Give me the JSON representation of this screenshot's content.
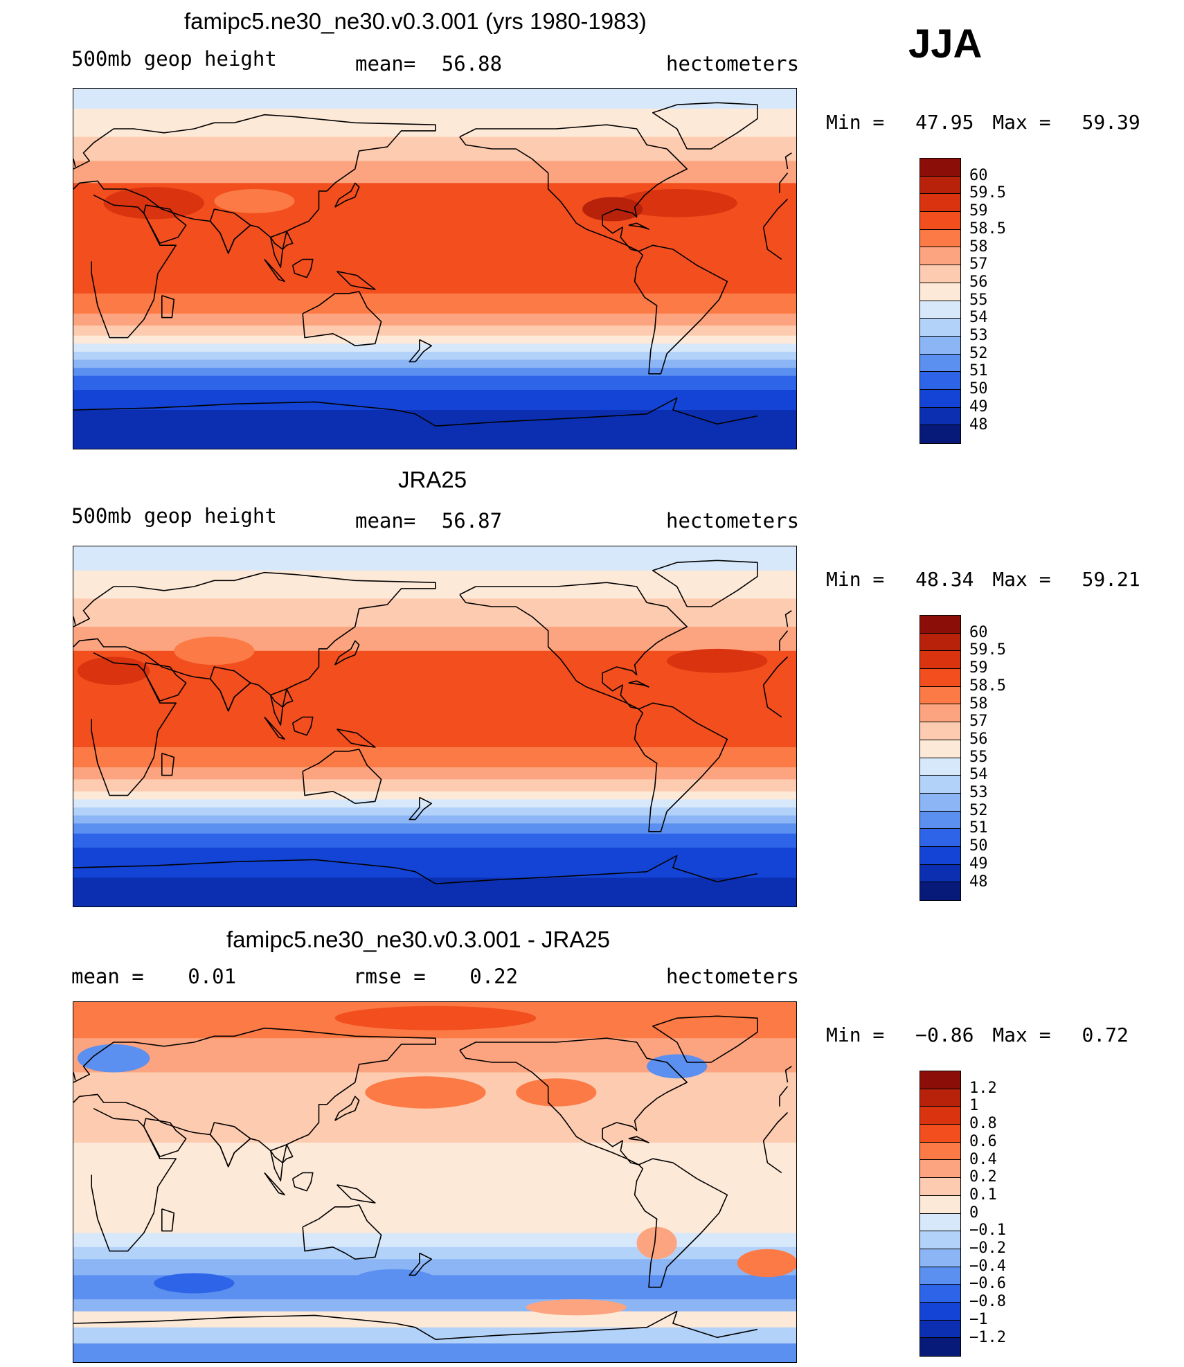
{
  "season": "JJA",
  "panels": [
    {
      "title": "famipc5.ne30_ne30.v0.3.001 (yrs 1980-1983)",
      "left_label": "500mb geop height",
      "center_label": "mean=",
      "center_value": "56.88",
      "right_label": "hectometers",
      "min_label": "Min =",
      "min_value": "47.95",
      "max_label": "Max =",
      "max_value": "59.39"
    },
    {
      "title": "JRA25",
      "left_label": "500mb geop height",
      "center_label": "mean=",
      "center_value": "56.87",
      "right_label": "hectometers",
      "min_label": "Min =",
      "min_value": "48.34",
      "max_label": "Max =",
      "max_value": "59.21"
    },
    {
      "title": "famipc5.ne30_ne30.v0.3.001 - JRA25",
      "left_label": "mean =",
      "left_value": "0.01",
      "center_label": "rmse =",
      "center_value": "0.22",
      "right_label": "hectometers",
      "min_label": "Min =",
      "min_value": "−0.86",
      "max_label": "Max =",
      "max_value": "0.72"
    }
  ],
  "colorbars": [
    {
      "labels": [
        "60",
        "59.5",
        "59",
        "58.5",
        "58",
        "57",
        "56",
        "55",
        "54",
        "53",
        "52",
        "51",
        "50",
        "49",
        "48"
      ],
      "colors": [
        "#8b0f08",
        "#b8220b",
        "#d9340f",
        "#f24e1e",
        "#fb7a45",
        "#fca47f",
        "#fdcbb0",
        "#fde9d8",
        "#d8e8fb",
        "#b3d2f9",
        "#8bb5f5",
        "#5b8ff0",
        "#2e64e8",
        "#1344d6",
        "#0b2fb0",
        "#071a7a"
      ]
    },
    {
      "labels": [
        "60",
        "59.5",
        "59",
        "58.5",
        "58",
        "57",
        "56",
        "55",
        "54",
        "53",
        "52",
        "51",
        "50",
        "49",
        "48"
      ],
      "colors": [
        "#8b0f08",
        "#b8220b",
        "#d9340f",
        "#f24e1e",
        "#fb7a45",
        "#fca47f",
        "#fdcbb0",
        "#fde9d8",
        "#d8e8fb",
        "#b3d2f9",
        "#8bb5f5",
        "#5b8ff0",
        "#2e64e8",
        "#1344d6",
        "#0b2fb0",
        "#071a7a"
      ]
    },
    {
      "labels": [
        "1.2",
        "1",
        "0.8",
        "0.6",
        "0.4",
        "0.2",
        "0.1",
        "0",
        "−0.1",
        "−0.2",
        "−0.4",
        "−0.6",
        "−0.8",
        "−1",
        "−1.2"
      ],
      "colors": [
        "#8b0f08",
        "#b8220b",
        "#d9340f",
        "#f24e1e",
        "#fb7a45",
        "#fca47f",
        "#fdcbb0",
        "#fde9d8",
        "#d8e8fb",
        "#b3d2f9",
        "#8bb5f5",
        "#5b8ff0",
        "#2e64e8",
        "#1344d6",
        "#0b2fb0",
        "#071a7a"
      ]
    }
  ],
  "maps": [
    {
      "bands": [
        {
          "lat": 90,
          "color": "#d8e8fb"
        },
        {
          "lat": 80,
          "color": "#fde9d8"
        },
        {
          "lat": 66,
          "color": "#fdcbb0"
        },
        {
          "lat": 54,
          "color": "#fca47f"
        },
        {
          "lat": 43,
          "color": "#f24e1e"
        },
        {
          "lat": -12,
          "color": "#fb7a45"
        },
        {
          "lat": -22,
          "color": "#fca47f"
        },
        {
          "lat": -28,
          "color": "#fdcbb0"
        },
        {
          "lat": -33,
          "color": "#fde9d8"
        },
        {
          "lat": -37,
          "color": "#d8e8fb"
        },
        {
          "lat": -41,
          "color": "#b3d2f9"
        },
        {
          "lat": -45,
          "color": "#8bb5f5"
        },
        {
          "lat": -49,
          "color": "#5b8ff0"
        },
        {
          "lat": -53,
          "color": "#2e64e8"
        },
        {
          "lat": -60,
          "color": "#1344d6"
        },
        {
          "lat": -70,
          "color": "#0b2fb0"
        }
      ],
      "blobs": [
        {
          "lon": 40,
          "lat": 33,
          "rlon": 25,
          "rlat": 8,
          "color": "#d9340f"
        },
        {
          "lon": 300,
          "lat": 33,
          "rlon": 30,
          "rlat": 7,
          "color": "#d9340f"
        },
        {
          "lon": 268,
          "lat": 30,
          "rlon": 15,
          "rlat": 6,
          "color": "#b8220b"
        },
        {
          "lon": 90,
          "lat": 34,
          "rlon": 20,
          "rlat": 6,
          "color": "#fb7a45"
        }
      ]
    },
    {
      "bands": [
        {
          "lat": 90,
          "color": "#d8e8fb"
        },
        {
          "lat": 78,
          "color": "#fde9d8"
        },
        {
          "lat": 64,
          "color": "#fdcbb0"
        },
        {
          "lat": 50,
          "color": "#fca47f"
        },
        {
          "lat": 38,
          "color": "#f24e1e"
        },
        {
          "lat": -10,
          "color": "#fb7a45"
        },
        {
          "lat": -20,
          "color": "#fca47f"
        },
        {
          "lat": -26,
          "color": "#fdcbb0"
        },
        {
          "lat": -32,
          "color": "#fde9d8"
        },
        {
          "lat": -36,
          "color": "#d8e8fb"
        },
        {
          "lat": -40,
          "color": "#b3d2f9"
        },
        {
          "lat": -44,
          "color": "#8bb5f5"
        },
        {
          "lat": -48,
          "color": "#5b8ff0"
        },
        {
          "lat": -53,
          "color": "#2e64e8"
        },
        {
          "lat": -60,
          "color": "#1344d6"
        },
        {
          "lat": -75,
          "color": "#0b2fb0"
        }
      ],
      "blobs": [
        {
          "lon": 20,
          "lat": 28,
          "rlon": 18,
          "rlat": 7,
          "color": "#d9340f"
        },
        {
          "lon": 320,
          "lat": 33,
          "rlon": 25,
          "rlat": 6,
          "color": "#d9340f"
        },
        {
          "lon": 70,
          "lat": 38,
          "rlon": 20,
          "rlat": 7,
          "color": "#fb7a45"
        }
      ]
    },
    {
      "bands": [
        {
          "lat": 90,
          "color": "#fb7a45"
        },
        {
          "lat": 72,
          "color": "#fca47f"
        },
        {
          "lat": 55,
          "color": "#fdcbb0"
        },
        {
          "lat": 20,
          "color": "#fde9d8"
        },
        {
          "lat": -25,
          "color": "#d8e8fb"
        },
        {
          "lat": -32,
          "color": "#b3d2f9"
        },
        {
          "lat": -38,
          "color": "#8bb5f5"
        },
        {
          "lat": -46,
          "color": "#5b8ff0"
        },
        {
          "lat": -58,
          "color": "#8bb5f5"
        },
        {
          "lat": -64,
          "color": "#fde9d8"
        },
        {
          "lat": -72,
          "color": "#b3d2f9"
        },
        {
          "lat": -80,
          "color": "#5b8ff0"
        }
      ],
      "blobs": [
        {
          "lon": 180,
          "lat": 82,
          "rlon": 50,
          "rlat": 6,
          "color": "#f24e1e"
        },
        {
          "lon": 20,
          "lat": 62,
          "rlon": 18,
          "rlat": 7,
          "color": "#5b8ff0"
        },
        {
          "lon": 300,
          "lat": 58,
          "rlon": 15,
          "rlat": 6,
          "color": "#5b8ff0"
        },
        {
          "lon": 175,
          "lat": 45,
          "rlon": 30,
          "rlat": 8,
          "color": "#fb7a45"
        },
        {
          "lon": 240,
          "lat": 45,
          "rlon": 20,
          "rlat": 7,
          "color": "#fb7a45"
        },
        {
          "lon": 60,
          "lat": -50,
          "rlon": 20,
          "rlat": 5,
          "color": "#2e64e8"
        },
        {
          "lon": 160,
          "lat": -48,
          "rlon": 20,
          "rlat": 5,
          "color": "#5b8ff0"
        },
        {
          "lon": 345,
          "lat": -40,
          "rlon": 15,
          "rlat": 7,
          "color": "#fb7a45"
        },
        {
          "lon": 250,
          "lat": -62,
          "rlon": 25,
          "rlat": 4,
          "color": "#fca47f"
        },
        {
          "lon": 290,
          "lat": -30,
          "rlon": 10,
          "rlat": 8,
          "color": "#fca47f"
        }
      ]
    }
  ]
}
